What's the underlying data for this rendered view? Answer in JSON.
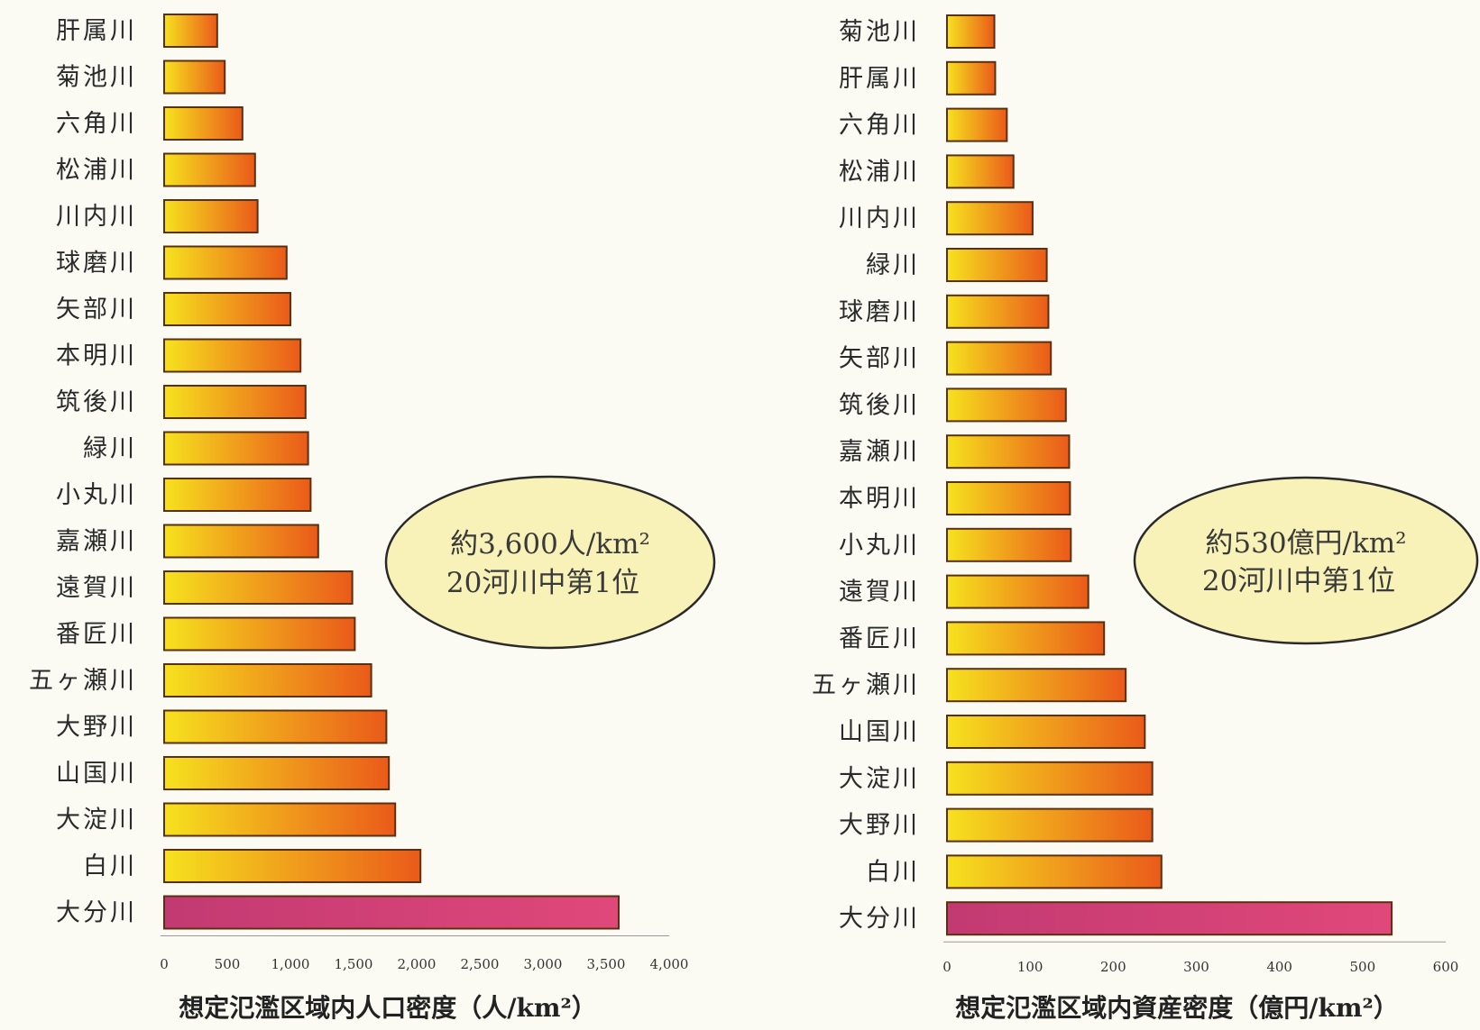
{
  "chart_data": [
    {
      "type": "bar",
      "orientation": "horizontal",
      "categories": [
        "肝属川",
        "菊池川",
        "六角川",
        "松浦川",
        "川内川",
        "球磨川",
        "矢部川",
        "本明川",
        "筑後川",
        "緑川",
        "小丸川",
        "嘉瀬川",
        "遠賀川",
        "番匠川",
        "五ヶ瀬川",
        "大野川",
        "山国川",
        "大淀川",
        "白川",
        "大分川"
      ],
      "values": [
        420,
        480,
        620,
        720,
        740,
        970,
        1000,
        1080,
        1120,
        1140,
        1160,
        1220,
        1490,
        1510,
        1640,
        1760,
        1780,
        1830,
        2030,
        3600
      ],
      "highlight_index": 19,
      "xlim": [
        0,
        4000
      ],
      "xticks": [
        0,
        500,
        1000,
        1500,
        2000,
        2500,
        3000,
        3500,
        4000
      ],
      "xtick_labels": [
        "0",
        "500",
        "1,000",
        "1,500",
        "2,000",
        "2,500",
        "3,000",
        "3,500",
        "4,000"
      ],
      "xlabel": "想定氾濫区域内人口密度（人/km²）",
      "callout": [
        "約3,600人/km²",
        "20河川中第1位"
      ]
    },
    {
      "type": "bar",
      "orientation": "horizontal",
      "categories": [
        "菊池川",
        "肝属川",
        "六角川",
        "松浦川",
        "川内川",
        "緑川",
        "球磨川",
        "矢部川",
        "筑後川",
        "嘉瀬川",
        "本明川",
        "小丸川",
        "遠賀川",
        "番匠川",
        "五ヶ瀬川",
        "山国川",
        "大淀川",
        "大野川",
        "白川",
        "大分川"
      ],
      "values": [
        57,
        58,
        72,
        80,
        103,
        120,
        122,
        125,
        143,
        147,
        148,
        149,
        170,
        189,
        215,
        238,
        247,
        247,
        258,
        535
      ],
      "highlight_index": 19,
      "xlim": [
        0,
        600
      ],
      "xticks": [
        0,
        100,
        200,
        300,
        400,
        500,
        600
      ],
      "xtick_labels": [
        "0",
        "100",
        "200",
        "300",
        "400",
        "500",
        "600"
      ],
      "xlabel": "想定氾濫区域内資産密度（億円/km²）",
      "callout": [
        "約530億円/km²",
        "20河川中第1位"
      ]
    }
  ],
  "colors": {
    "bar_start": "#f6e21e",
    "bar_end": "#ea5a1a",
    "highlight_start": "#c23a72",
    "highlight_end": "#e0487a",
    "bar_stroke": "#5a3010",
    "callout_fill": "#f8f2b8",
    "callout_stroke": "#2a2a2a"
  }
}
